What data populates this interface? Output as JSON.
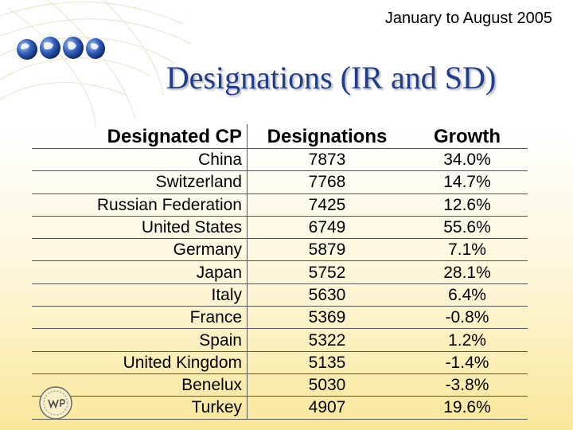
{
  "header": {
    "date_range": "January to August 2005"
  },
  "slide": {
    "title": "Designations (IR and SD)"
  },
  "table": {
    "columns": [
      "Designated CP",
      "Designations",
      "Growth"
    ],
    "rows": [
      {
        "cp": "China",
        "designations": "7873",
        "growth": "34.0%"
      },
      {
        "cp": "Switzerland",
        "designations": "7768",
        "growth": "14.7%"
      },
      {
        "cp": "Russian Federation",
        "designations": "7425",
        "growth": "12.6%"
      },
      {
        "cp": "United States",
        "designations": "6749",
        "growth": "55.6%"
      },
      {
        "cp": "Germany",
        "designations": "5879",
        "growth": "7.1%"
      },
      {
        "cp": "Japan",
        "designations": "5752",
        "growth": "28.1%"
      },
      {
        "cp": "Italy",
        "designations": "5630",
        "growth": "6.4%"
      },
      {
        "cp": "France",
        "designations": "5369",
        "growth": "-0.8%"
      },
      {
        "cp": "Spain",
        "designations": "5322",
        "growth": "1.2%"
      },
      {
        "cp": "United Kingdom",
        "designations": "5135",
        "growth": "-1.4%"
      },
      {
        "cp": "Benelux",
        "designations": "5030",
        "growth": "-3.8%"
      },
      {
        "cp": "Turkey",
        "designations": "4907",
        "growth": "19.6%"
      }
    ]
  },
  "logos": {
    "globes": "globe-icons",
    "emblem": "wipo-emblem"
  }
}
